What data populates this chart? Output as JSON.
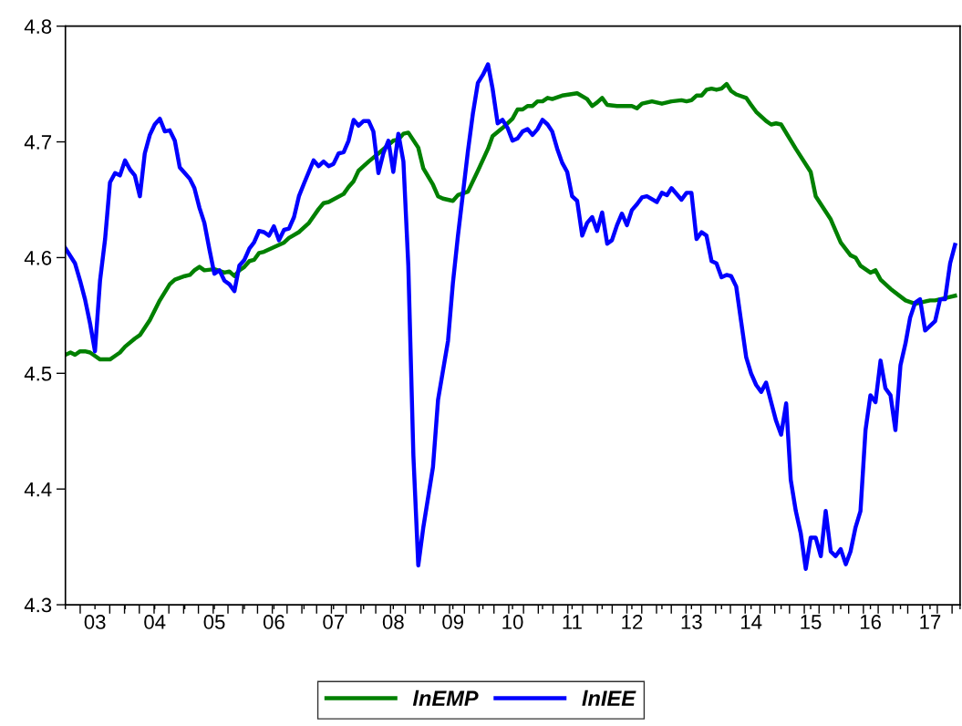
{
  "chart_data": {
    "type": "line",
    "xlim": [
      "2003-01",
      "2018-01"
    ],
    "ylim": [
      4.3,
      4.8
    ],
    "yticks": [
      4.3,
      4.4,
      4.5,
      4.6,
      4.7,
      4.8
    ],
    "xticks": [
      {
        "value": "2003-01",
        "label": null
      },
      {
        "value": "2003-07",
        "label": "03"
      },
      {
        "value": "2004-01",
        "label": null
      },
      {
        "value": "2004-07",
        "label": "04"
      },
      {
        "value": "2005-01",
        "label": null
      },
      {
        "value": "2005-07",
        "label": "05"
      },
      {
        "value": "2006-01",
        "label": null
      },
      {
        "value": "2006-07",
        "label": "06"
      },
      {
        "value": "2007-01",
        "label": null
      },
      {
        "value": "2007-07",
        "label": "07"
      },
      {
        "value": "2008-01",
        "label": null
      },
      {
        "value": "2008-07",
        "label": "08"
      },
      {
        "value": "2009-01",
        "label": null
      },
      {
        "value": "2009-07",
        "label": "09"
      },
      {
        "value": "2010-01",
        "label": null
      },
      {
        "value": "2010-07",
        "label": "10"
      },
      {
        "value": "2011-01",
        "label": null
      },
      {
        "value": "2011-07",
        "label": "11"
      },
      {
        "value": "2012-01",
        "label": null
      },
      {
        "value": "2012-07",
        "label": "12"
      },
      {
        "value": "2013-01",
        "label": null
      },
      {
        "value": "2013-07",
        "label": "13"
      },
      {
        "value": "2014-01",
        "label": null
      },
      {
        "value": "2014-07",
        "label": "14"
      },
      {
        "value": "2015-01",
        "label": null
      },
      {
        "value": "2015-07",
        "label": "15"
      },
      {
        "value": "2016-01",
        "label": null
      },
      {
        "value": "2016-07",
        "label": "16"
      },
      {
        "value": "2017-01",
        "label": null
      },
      {
        "value": "2017-07",
        "label": "17"
      },
      {
        "value": "2018-01",
        "label": null
      }
    ],
    "grid": false,
    "legend": "bottom",
    "line_style": "solid",
    "marker": "none",
    "series": [
      {
        "name": "lnEMP",
        "color": "#008000",
        "x": [
          "2003-01",
          "2003-02",
          "2003-03",
          "2003-04",
          "2003-05",
          "2003-06",
          "2003-07",
          "2003-08",
          "2003-10",
          "2003-11",
          "2003-12",
          "2004-01",
          "2004-03",
          "2004-04",
          "2004-06",
          "2004-08",
          "2004-10",
          "2004-11",
          "2005-01",
          "2005-02",
          "2005-03",
          "2005-04",
          "2005-05",
          "2005-07",
          "2005-09",
          "2005-10",
          "2005-11",
          "2005-12",
          "2006-01",
          "2006-02",
          "2006-03",
          "2006-04",
          "2006-05",
          "2006-07",
          "2006-09",
          "2006-10",
          "2006-12",
          "2007-02",
          "2007-04",
          "2007-05",
          "2007-06",
          "2007-09",
          "2007-10",
          "2007-11",
          "2007-12",
          "2008-01",
          "2008-02",
          "2008-04",
          "2008-07",
          "2008-08",
          "2008-09",
          "2008-10",
          "2008-12",
          "2009-01",
          "2009-03",
          "2009-04",
          "2009-05",
          "2009-07",
          "2009-08",
          "2009-10",
          "2009-12",
          "2010-02",
          "2010-03",
          "2010-05",
          "2010-07",
          "2010-08",
          "2010-09",
          "2010-10",
          "2010-11",
          "2010-12",
          "2011-01",
          "2011-02",
          "2011-03",
          "2011-05",
          "2011-08",
          "2011-10",
          "2011-11",
          "2011-12",
          "2012-01",
          "2012-02",
          "2012-04",
          "2012-05",
          "2012-07",
          "2012-08",
          "2012-09",
          "2012-11",
          "2013-01",
          "2013-03",
          "2013-05",
          "2013-06",
          "2013-07",
          "2013-08",
          "2013-09",
          "2013-10",
          "2013-11",
          "2013-12",
          "2014-01",
          "2014-02",
          "2014-03",
          "2014-04",
          "2014-06",
          "2014-07",
          "2014-08",
          "2014-10",
          "2014-11",
          "2014-12",
          "2015-01",
          "2015-04",
          "2015-07",
          "2015-08",
          "2015-11",
          "2016-01",
          "2016-03",
          "2016-04",
          "2016-05",
          "2016-07",
          "2016-08",
          "2016-09",
          "2016-11",
          "2017-02",
          "2017-04",
          "2017-07",
          "2017-08",
          "2017-10",
          "2017-12"
        ],
        "values": [
          4.516,
          4.518,
          4.516,
          4.519,
          4.519,
          4.518,
          4.515,
          4.512,
          4.512,
          4.515,
          4.518,
          4.523,
          4.53,
          4.533,
          4.546,
          4.563,
          4.577,
          4.581,
          4.584,
          4.585,
          4.589,
          4.592,
          4.589,
          4.59,
          4.587,
          4.588,
          4.584,
          4.589,
          4.592,
          4.597,
          4.598,
          4.604,
          4.605,
          4.609,
          4.613,
          4.617,
          4.622,
          4.63,
          4.642,
          4.647,
          4.648,
          4.655,
          4.661,
          4.666,
          4.675,
          4.679,
          4.683,
          4.69,
          4.701,
          4.702,
          4.707,
          4.708,
          4.695,
          4.677,
          4.663,
          4.653,
          4.651,
          4.649,
          4.654,
          4.657,
          4.675,
          4.694,
          4.705,
          4.712,
          4.72,
          4.728,
          4.728,
          4.731,
          4.731,
          4.735,
          4.735,
          4.738,
          4.737,
          4.74,
          4.742,
          4.737,
          4.731,
          4.734,
          4.738,
          4.732,
          4.731,
          4.731,
          4.731,
          4.729,
          4.733,
          4.735,
          4.733,
          4.735,
          4.736,
          4.735,
          4.736,
          4.74,
          4.74,
          4.745,
          4.746,
          4.745,
          4.746,
          4.75,
          4.744,
          4.741,
          4.738,
          4.732,
          4.726,
          4.718,
          4.715,
          4.716,
          4.715,
          4.694,
          4.674,
          4.653,
          4.633,
          4.613,
          4.602,
          4.6,
          4.593,
          4.587,
          4.589,
          4.581,
          4.573,
          4.563,
          4.56,
          4.563,
          4.563,
          4.565,
          4.567
        ]
      },
      {
        "name": "lnIEE",
        "color": "#0000ff",
        "x": [
          "2003-01",
          "2003-03",
          "2003-04",
          "2003-05",
          "2003-06",
          "2003-07",
          "2003-08",
          "2003-09",
          "2003-10",
          "2003-11",
          "2003-12",
          "2004-01",
          "2004-02",
          "2004-03",
          "2004-04",
          "2004-05",
          "2004-06",
          "2004-07",
          "2004-08",
          "2004-09",
          "2004-10",
          "2004-11",
          "2004-12",
          "2005-01",
          "2005-02",
          "2005-03",
          "2005-04",
          "2005-05",
          "2005-06",
          "2005-07",
          "2005-08",
          "2005-09",
          "2005-10",
          "2005-11",
          "2005-12",
          "2006-01",
          "2006-02",
          "2006-03",
          "2006-04",
          "2006-05",
          "2006-06",
          "2006-07",
          "2006-08",
          "2006-09",
          "2006-10",
          "2006-11",
          "2006-12",
          "2007-01",
          "2007-03",
          "2007-04",
          "2007-05",
          "2007-06",
          "2007-07",
          "2007-08",
          "2007-09",
          "2007-10",
          "2007-11",
          "2007-12",
          "2008-01",
          "2008-02",
          "2008-03",
          "2008-04",
          "2008-05",
          "2008-06",
          "2008-07",
          "2008-08",
          "2008-09",
          "2008-10",
          "2008-11",
          "2008-12",
          "2009-01",
          "2009-03",
          "2009-04",
          "2009-06",
          "2009-07",
          "2009-08",
          "2009-09",
          "2009-10",
          "2009-11",
          "2009-12",
          "2010-01",
          "2010-02",
          "2010-03",
          "2010-04",
          "2010-05",
          "2010-06",
          "2010-07",
          "2010-08",
          "2010-09",
          "2010-10",
          "2010-11",
          "2010-12",
          "2011-01",
          "2011-02",
          "2011-03",
          "2011-04",
          "2011-05",
          "2011-06",
          "2011-07",
          "2011-08",
          "2011-09",
          "2011-10",
          "2011-11",
          "2011-12",
          "2012-01",
          "2012-02",
          "2012-03",
          "2012-04",
          "2012-05",
          "2012-06",
          "2012-07",
          "2012-08",
          "2012-09",
          "2012-10",
          "2012-12",
          "2013-01",
          "2013-02",
          "2013-03",
          "2013-05",
          "2013-06",
          "2013-07",
          "2013-08",
          "2013-09",
          "2013-10",
          "2013-11",
          "2013-12",
          "2014-01",
          "2014-02",
          "2014-03",
          "2014-04",
          "2014-05",
          "2014-06",
          "2014-07",
          "2014-08",
          "2014-09",
          "2014-10",
          "2014-11",
          "2014-12",
          "2015-01",
          "2015-02",
          "2015-03",
          "2015-04",
          "2015-05",
          "2015-06",
          "2015-07",
          "2015-08",
          "2015-09",
          "2015-10",
          "2015-11",
          "2015-12",
          "2016-01",
          "2016-02",
          "2016-03",
          "2016-04",
          "2016-05",
          "2016-06",
          "2016-07",
          "2016-08",
          "2016-09",
          "2016-10",
          "2016-11",
          "2016-12",
          "2017-01",
          "2017-02",
          "2017-03",
          "2017-04",
          "2017-05",
          "2017-06",
          "2017-08",
          "2017-09",
          "2017-10",
          "2017-11",
          "2017-12"
        ],
        "values": [
          4.608,
          4.595,
          4.58,
          4.564,
          4.543,
          4.519,
          4.58,
          4.616,
          4.665,
          4.673,
          4.671,
          4.684,
          4.676,
          4.671,
          4.653,
          4.69,
          4.706,
          4.715,
          4.72,
          4.709,
          4.71,
          4.701,
          4.678,
          4.673,
          4.668,
          4.66,
          4.643,
          4.63,
          4.607,
          4.586,
          4.589,
          4.58,
          4.577,
          4.571,
          4.593,
          4.598,
          4.608,
          4.613,
          4.623,
          4.622,
          4.619,
          4.627,
          4.615,
          4.624,
          4.625,
          4.635,
          4.653,
          4.664,
          4.684,
          4.679,
          4.683,
          4.679,
          4.681,
          4.69,
          4.691,
          4.701,
          4.719,
          4.714,
          4.718,
          4.718,
          4.709,
          4.673,
          4.69,
          4.701,
          4.674,
          4.707,
          4.683,
          4.593,
          4.429,
          4.334,
          4.367,
          4.419,
          4.477,
          4.528,
          4.578,
          4.619,
          4.656,
          4.692,
          4.725,
          4.751,
          4.758,
          4.767,
          4.746,
          4.716,
          4.719,
          4.712,
          4.701,
          4.703,
          4.709,
          4.711,
          4.706,
          4.711,
          4.719,
          4.715,
          4.709,
          4.694,
          4.682,
          4.674,
          4.653,
          4.649,
          4.619,
          4.63,
          4.635,
          4.623,
          4.639,
          4.612,
          4.615,
          4.628,
          4.638,
          4.628,
          4.641,
          4.646,
          4.652,
          4.653,
          4.648,
          4.656,
          4.654,
          4.66,
          4.65,
          4.656,
          4.656,
          4.616,
          4.622,
          4.619,
          4.597,
          4.595,
          4.583,
          4.585,
          4.584,
          4.575,
          4.545,
          4.514,
          4.5,
          4.49,
          4.484,
          4.492,
          4.475,
          4.459,
          4.447,
          4.474,
          4.408,
          4.381,
          4.362,
          4.331,
          4.358,
          4.358,
          4.342,
          4.381,
          4.346,
          4.342,
          4.348,
          4.335,
          4.346,
          4.367,
          4.381,
          4.451,
          4.481,
          4.475,
          4.511,
          4.487,
          4.481,
          4.451,
          4.507,
          4.526,
          4.548,
          4.561,
          4.564,
          4.537,
          4.545,
          4.564,
          4.564,
          4.595,
          4.611
        ]
      }
    ]
  }
}
